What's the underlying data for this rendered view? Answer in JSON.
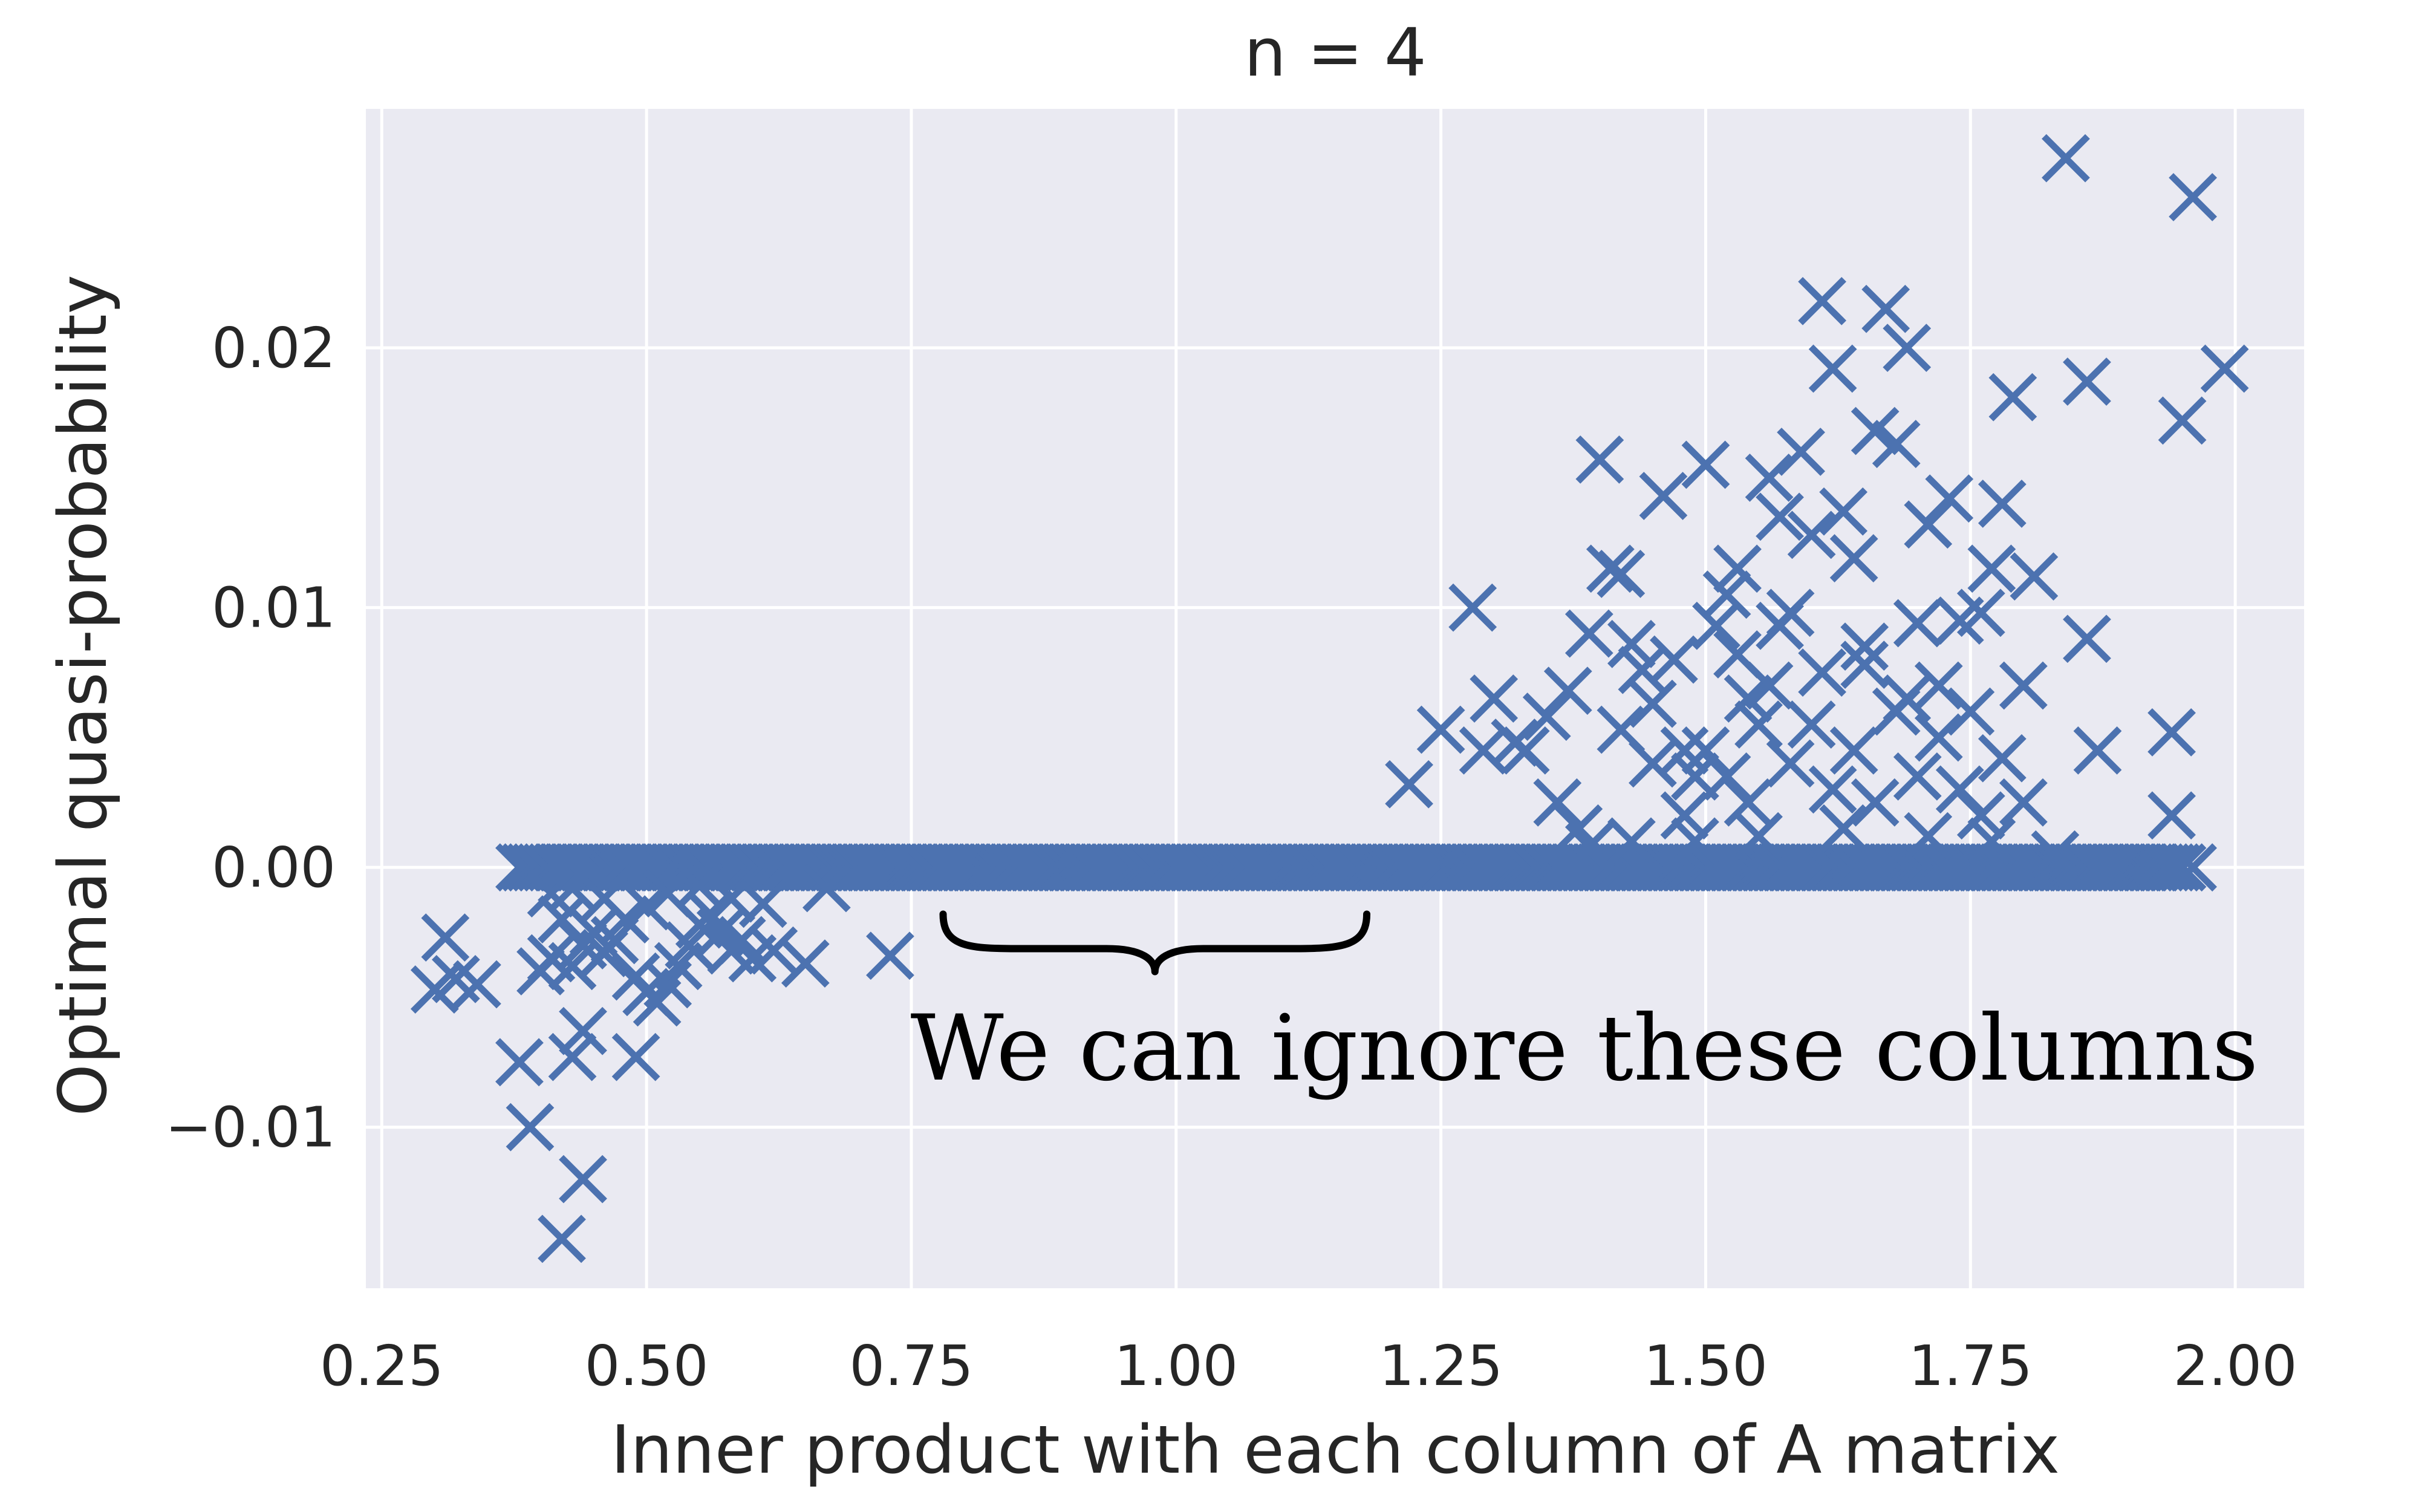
{
  "chart_data": {
    "type": "scatter",
    "title": "n = 4",
    "xlabel": "Inner product with each column of A matrix",
    "ylabel": "Optimal quasi-probability",
    "xlim": [
      0.235,
      2.065
    ],
    "ylim": [
      -0.0162,
      0.0292
    ],
    "xticks": [
      0.25,
      0.5,
      0.75,
      1.0,
      1.25,
      1.5,
      1.75,
      2.0
    ],
    "xtick_labels": [
      "0.25",
      "0.50",
      "0.75",
      "1.00",
      "1.25",
      "1.50",
      "1.75",
      "2.00"
    ],
    "yticks": [
      -0.01,
      0.0,
      0.01,
      0.02
    ],
    "ytick_labels": [
      "−0.01",
      "0.00",
      "0.01",
      "0.02"
    ],
    "grid": true,
    "legend": "none",
    "marker": "x",
    "colors": {
      "marker": "#4c72b0",
      "axes_bg": "#eaeaf2",
      "grid": "#ffffff",
      "text": "#262626"
    },
    "annotation": {
      "text": "We can ignore these columns",
      "brace_x_range": [
        0.78,
        1.18
      ],
      "brace_y": -0.0018
    },
    "zero_band": {
      "x_start": 0.38,
      "x_end": 1.95,
      "step": 0.005,
      "y": 0.0
    },
    "points": [
      [
        0.31,
        -0.0027
      ],
      [
        0.3,
        -0.0047
      ],
      [
        0.32,
        -0.0043
      ],
      [
        0.34,
        -0.0045
      ],
      [
        0.38,
        -0.0075
      ],
      [
        0.39,
        -0.01
      ],
      [
        0.42,
        -0.0143
      ],
      [
        0.44,
        -0.012
      ],
      [
        0.43,
        -0.0073
      ],
      [
        0.44,
        -0.0063
      ],
      [
        0.49,
        -0.0073
      ],
      [
        0.4,
        -0.004
      ],
      [
        0.41,
        -0.0035
      ],
      [
        0.42,
        -0.002
      ],
      [
        0.43,
        -0.0038
      ],
      [
        0.44,
        -0.003
      ],
      [
        0.45,
        -0.0025
      ],
      [
        0.46,
        -0.0033
      ],
      [
        0.47,
        -0.0028
      ],
      [
        0.48,
        -0.002
      ],
      [
        0.49,
        -0.0042
      ],
      [
        0.5,
        -0.0048
      ],
      [
        0.51,
        -0.0052
      ],
      [
        0.52,
        -0.0045
      ],
      [
        0.53,
        -0.0038
      ],
      [
        0.54,
        -0.003
      ],
      [
        0.55,
        -0.0022
      ],
      [
        0.56,
        -0.0018
      ],
      [
        0.57,
        -0.0025
      ],
      [
        0.58,
        -0.0032
      ],
      [
        0.59,
        -0.0028
      ],
      [
        0.6,
        -0.0035
      ],
      [
        0.62,
        -0.0032
      ],
      [
        0.65,
        -0.0037
      ],
      [
        0.67,
        -0.0008
      ],
      [
        0.73,
        -0.0034
      ],
      [
        0.5,
        -0.0015
      ],
      [
        0.46,
        -0.0012
      ],
      [
        0.43,
        -0.0008
      ],
      [
        0.41,
        -0.001
      ],
      [
        0.52,
        -0.001
      ],
      [
        0.55,
        -0.0007
      ],
      [
        0.58,
        -0.0012
      ],
      [
        0.61,
        -0.0014
      ],
      [
        1.22,
        0.0032
      ],
      [
        1.25,
        0.0053
      ],
      [
        1.28,
        0.01
      ],
      [
        1.29,
        0.0045
      ],
      [
        1.3,
        0.0065
      ],
      [
        1.32,
        0.0048
      ],
      [
        1.35,
        0.0058
      ],
      [
        1.37,
        0.0068
      ],
      [
        1.39,
        0.009
      ],
      [
        1.4,
        0.0157
      ],
      [
        1.41,
        0.0115
      ],
      [
        1.42,
        0.0113
      ],
      [
        1.43,
        0.0086
      ],
      [
        1.44,
        0.0076
      ],
      [
        1.45,
        0.0063
      ],
      [
        1.46,
        0.0143
      ],
      [
        1.47,
        0.008
      ],
      [
        1.48,
        0.0045
      ],
      [
        1.49,
        0.0035
      ],
      [
        1.5,
        0.0155
      ],
      [
        1.51,
        0.0093
      ],
      [
        1.52,
        0.0105
      ],
      [
        1.53,
        0.0115
      ],
      [
        1.54,
        0.0065
      ],
      [
        1.55,
        0.0055
      ],
      [
        1.56,
        0.015
      ],
      [
        1.57,
        0.0135
      ],
      [
        1.58,
        0.0098
      ],
      [
        1.59,
        0.016
      ],
      [
        1.6,
        0.0128
      ],
      [
        1.61,
        0.0218
      ],
      [
        1.62,
        0.0192
      ],
      [
        1.63,
        0.0137
      ],
      [
        1.64,
        0.0119
      ],
      [
        1.65,
        0.0085
      ],
      [
        1.66,
        0.0168
      ],
      [
        1.67,
        0.0215
      ],
      [
        1.68,
        0.0163
      ],
      [
        1.69,
        0.02
      ],
      [
        1.7,
        0.0094
      ],
      [
        1.71,
        0.0132
      ],
      [
        1.72,
        0.007
      ],
      [
        1.73,
        0.0142
      ],
      [
        1.74,
        0.0095
      ],
      [
        1.75,
        0.006
      ],
      [
        1.76,
        0.0098
      ],
      [
        1.77,
        0.0115
      ],
      [
        1.78,
        0.014
      ],
      [
        1.79,
        0.0181
      ],
      [
        1.8,
        0.007
      ],
      [
        1.81,
        0.0112
      ],
      [
        1.84,
        0.0273
      ],
      [
        1.86,
        0.0187
      ],
      [
        1.86,
        0.0088
      ],
      [
        1.87,
        0.0045
      ],
      [
        1.94,
        0.0052
      ],
      [
        1.95,
        0.0172
      ],
      [
        1.96,
        0.0258
      ],
      [
        1.99,
        0.0192
      ],
      [
        1.94,
        0.002
      ],
      [
        1.96,
        0.0
      ],
      [
        1.33,
        0.0045
      ],
      [
        1.36,
        0.0025
      ],
      [
        1.38,
        0.0015
      ],
      [
        1.42,
        0.0053
      ],
      [
        1.45,
        0.004
      ],
      [
        1.48,
        0.002
      ],
      [
        1.5,
        0.0045
      ],
      [
        1.52,
        0.0035
      ],
      [
        1.54,
        0.0025
      ],
      [
        1.56,
        0.007
      ],
      [
        1.58,
        0.004
      ],
      [
        1.6,
        0.0055
      ],
      [
        1.62,
        0.003
      ],
      [
        1.64,
        0.0045
      ],
      [
        1.66,
        0.0025
      ],
      [
        1.68,
        0.006
      ],
      [
        1.7,
        0.0035
      ],
      [
        1.72,
        0.005
      ],
      [
        1.74,
        0.003
      ],
      [
        1.76,
        0.002
      ],
      [
        1.78,
        0.0042
      ],
      [
        1.8,
        0.0025
      ],
      [
        1.53,
        0.0082
      ],
      [
        1.57,
        0.0093
      ],
      [
        1.61,
        0.0075
      ],
      [
        1.65,
        0.0078
      ],
      [
        1.69,
        0.0065
      ],
      [
        1.49,
        0.001
      ],
      [
        1.55,
        0.0012
      ],
      [
        1.63,
        0.0015
      ],
      [
        1.71,
        0.0012
      ],
      [
        1.77,
        0.001
      ],
      [
        1.83,
        0.0005
      ],
      [
        1.43,
        0.001
      ],
      [
        1.39,
        0.0008
      ]
    ]
  }
}
